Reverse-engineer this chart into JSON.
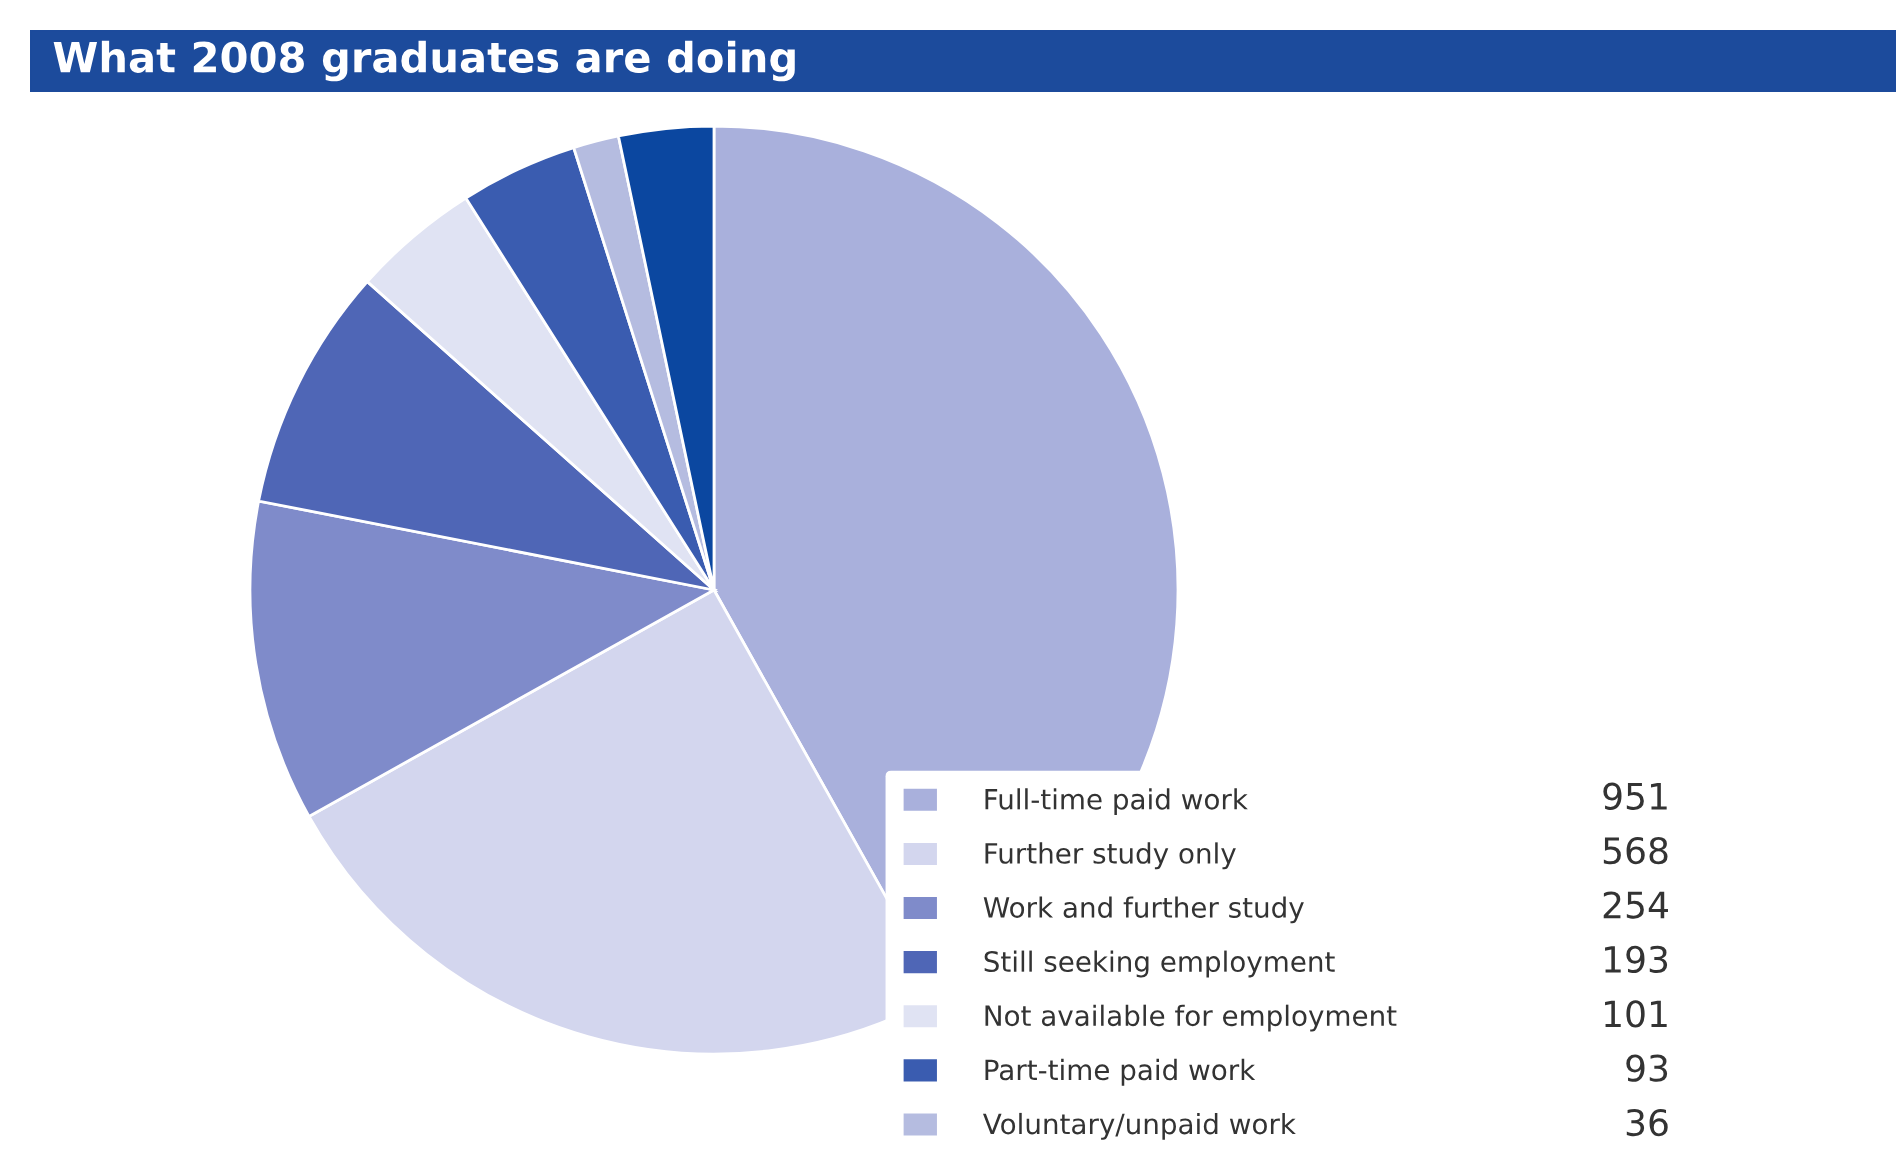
{
  "chart_data": {
    "type": "pie",
    "title": "What 2008 graduates are doing",
    "categories": [
      "Full-time paid work",
      "Further study only",
      "Work and further study",
      "Still seeking employment",
      "Not available for employment",
      "Part-time paid work",
      "Voluntary/unpaid work",
      null
    ],
    "values": [
      951,
      568,
      254,
      193,
      101,
      93,
      36,
      75
    ],
    "colors": [
      "#a9b0dc",
      "#d3d6ee",
      "#7f8bca",
      "#4f66b6",
      "#e0e3f3",
      "#3a5cb0",
      "#b5bce0",
      "#0b47a0"
    ],
    "value_labels": [
      "951",
      "568",
      "254",
      "193",
      "101",
      "93",
      "36",
      null
    ],
    "legend": "bottom right"
  }
}
